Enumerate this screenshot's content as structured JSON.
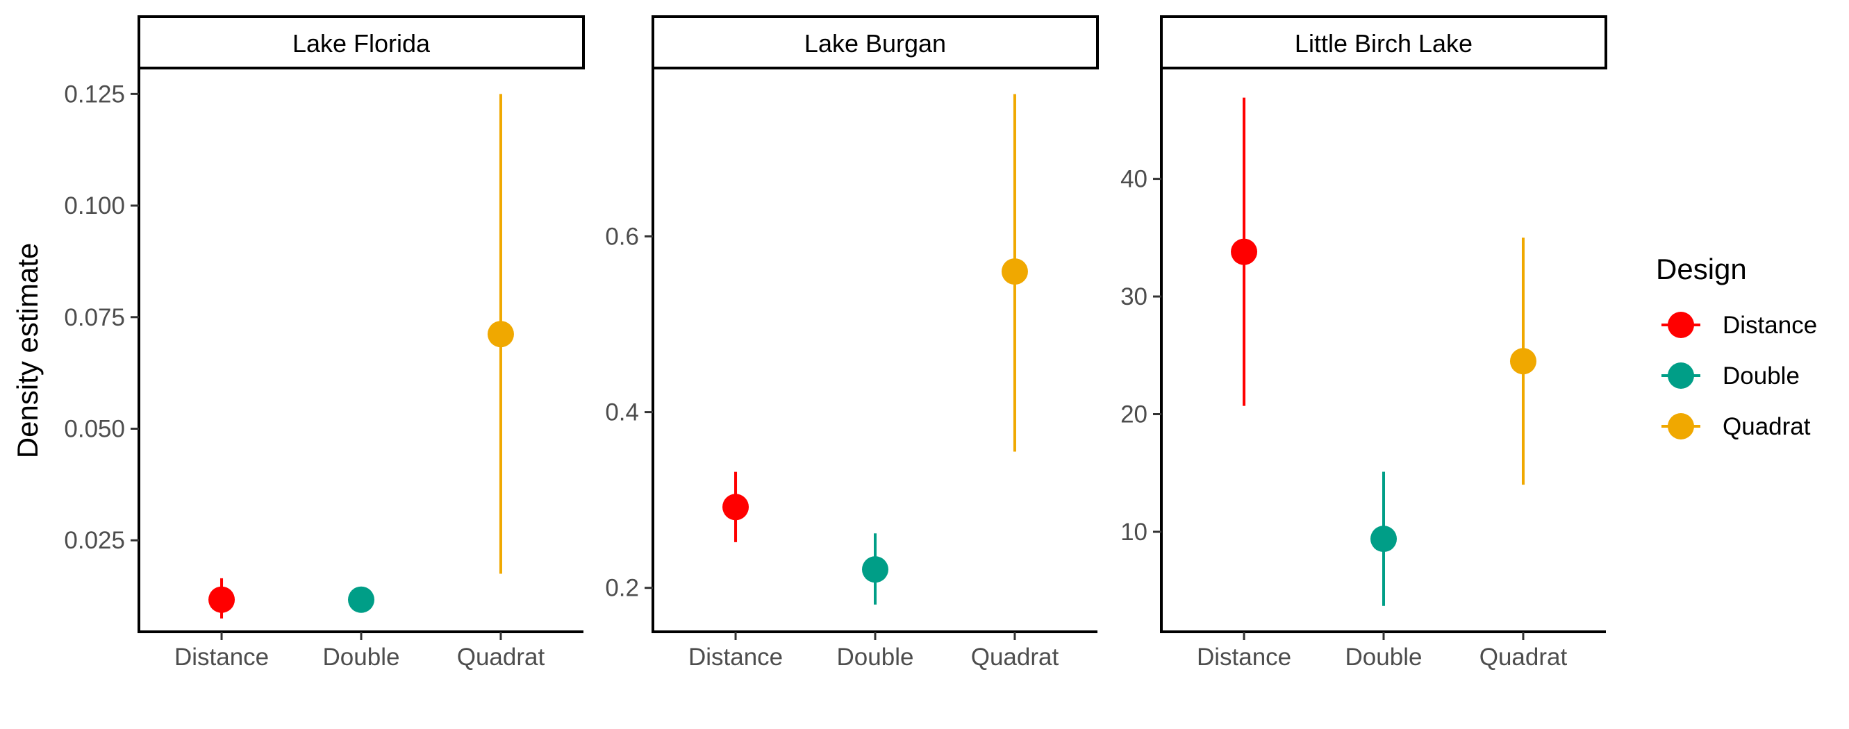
{
  "chart_data": {
    "type": "scatter",
    "subtype": "point-range",
    "ylabel": "Density estimate",
    "xlabel": "",
    "categories": [
      "Distance",
      "Double",
      "Quadrat"
    ],
    "legend": {
      "title": "Design",
      "position": "right",
      "entries": [
        {
          "name": "Distance",
          "color": "#ff0000"
        },
        {
          "name": "Double",
          "color": "#009e87"
        },
        {
          "name": "Quadrat",
          "color": "#f0a800"
        }
      ]
    },
    "panels": [
      {
        "title": "Lake Florida",
        "ylim": [
          0.0045,
          0.1305
        ],
        "yticks": [
          0.025,
          0.05,
          0.075,
          0.1,
          0.125
        ],
        "ytick_labels": [
          "0.025",
          "0.050",
          "0.075",
          "0.100",
          "0.125"
        ],
        "points": [
          {
            "category": "Distance",
            "estimate": 0.0117,
            "lower": 0.0075,
            "upper": 0.0165
          },
          {
            "category": "Double",
            "estimate": 0.0117,
            "lower": 0.0117,
            "upper": 0.0117
          },
          {
            "category": "Quadrat",
            "estimate": 0.0712,
            "lower": 0.0175,
            "upper": 0.125
          }
        ]
      },
      {
        "title": "Lake Burgan",
        "ylim": [
          0.15,
          0.79
        ],
        "yticks": [
          0.2,
          0.4,
          0.6
        ],
        "ytick_labels": [
          "0.2",
          "0.4",
          "0.6"
        ],
        "points": [
          {
            "category": "Distance",
            "estimate": 0.292,
            "lower": 0.252,
            "upper": 0.332
          },
          {
            "category": "Double",
            "estimate": 0.221,
            "lower": 0.181,
            "upper": 0.262
          },
          {
            "category": "Quadrat",
            "estimate": 0.56,
            "lower": 0.355,
            "upper": 0.762
          }
        ]
      },
      {
        "title": "Little Birch Lake",
        "ylim": [
          1.5,
          49.3
        ],
        "yticks": [
          10,
          20,
          30,
          40
        ],
        "ytick_labels": [
          "10",
          "20",
          "30",
          "40"
        ],
        "points": [
          {
            "category": "Distance",
            "estimate": 33.8,
            "lower": 20.7,
            "upper": 46.9
          },
          {
            "category": "Double",
            "estimate": 9.4,
            "lower": 3.7,
            "upper": 15.1
          },
          {
            "category": "Quadrat",
            "estimate": 24.5,
            "lower": 14.0,
            "upper": 35.0
          }
        ]
      }
    ]
  }
}
